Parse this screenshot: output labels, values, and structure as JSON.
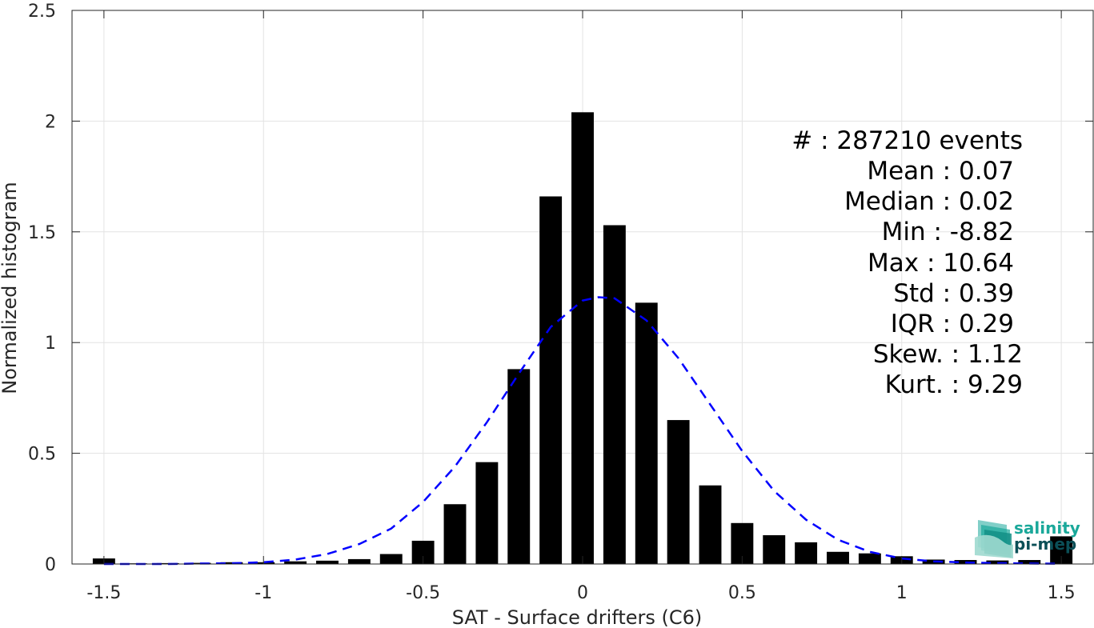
{
  "chart_data": {
    "type": "bar",
    "xlabel": "SAT - Surface drifters (C6)",
    "ylabel": "Normalized histogram",
    "xlim": [
      -1.6,
      1.6
    ],
    "ylim": [
      0,
      2.5
    ],
    "x_ticks": [
      -1.5,
      -1,
      -0.5,
      0,
      0.5,
      1,
      1.5
    ],
    "x_tick_labels": [
      "-1.5",
      "-1",
      "-0.5",
      "0",
      "0.5",
      "1",
      "1.5"
    ],
    "y_ticks": [
      0,
      0.5,
      1,
      1.5,
      2,
      2.5
    ],
    "y_tick_labels": [
      "0",
      "0.5",
      "1",
      "1.5",
      "2",
      "2.5"
    ],
    "grid": true,
    "bar_width": 0.07,
    "bars": {
      "x": [
        -1.5,
        -1.4,
        -1.3,
        -1.2,
        -1.1,
        -1.0,
        -0.9,
        -0.8,
        -0.7,
        -0.6,
        -0.5,
        -0.4,
        -0.3,
        -0.2,
        -0.1,
        0.0,
        0.1,
        0.2,
        0.3,
        0.4,
        0.5,
        0.6,
        0.7,
        0.8,
        0.9,
        1.0,
        1.1,
        1.2,
        1.3,
        1.4,
        1.5
      ],
      "values": [
        0.025,
        0.003,
        0.004,
        0.005,
        0.008,
        0.008,
        0.012,
        0.015,
        0.022,
        0.045,
        0.105,
        0.27,
        0.46,
        0.88,
        1.66,
        2.04,
        1.53,
        1.18,
        0.65,
        0.355,
        0.185,
        0.13,
        0.098,
        0.055,
        0.048,
        0.035,
        0.02,
        0.018,
        0.016,
        0.018,
        0.125
      ]
    },
    "fit_curve": {
      "style": "dashed",
      "color": "#0000ff",
      "x": [
        -1.5,
        -1.4,
        -1.3,
        -1.2,
        -1.1,
        -1.0,
        -0.9,
        -0.8,
        -0.7,
        -0.6,
        -0.5,
        -0.4,
        -0.3,
        -0.2,
        -0.1,
        0.0,
        0.05,
        0.1,
        0.2,
        0.3,
        0.4,
        0.5,
        0.6,
        0.7,
        0.8,
        0.9,
        1.0,
        1.1,
        1.2,
        1.3,
        1.4,
        1.5
      ],
      "y": [
        0.0,
        0.0,
        0.0,
        0.002,
        0.003,
        0.008,
        0.02,
        0.045,
        0.09,
        0.16,
        0.28,
        0.44,
        0.64,
        0.86,
        1.07,
        1.19,
        1.205,
        1.2,
        1.1,
        0.93,
        0.72,
        0.51,
        0.33,
        0.2,
        0.11,
        0.055,
        0.025,
        0.012,
        0.007,
        0.004,
        0.002,
        0.001
      ]
    },
    "bar_color": "#000000"
  },
  "stats": [
    {
      "label": "#  : 287210 events"
    },
    {
      "label": "Mean : 0.07"
    },
    {
      "label": "Median : 0.02"
    },
    {
      "label": "Min : -8.82"
    },
    {
      "label": "Max : 10.64"
    },
    {
      "label": "Std : 0.39"
    },
    {
      "label": "IQR : 0.29"
    },
    {
      "label": "Skew. : 1.12"
    },
    {
      "label": "Kurt. : 9.29"
    }
  ],
  "logo": {
    "line1": "salinity",
    "line2": "pi-mep",
    "color_primary": "#1aa89a",
    "color_secondary": "#0b4f57"
  }
}
